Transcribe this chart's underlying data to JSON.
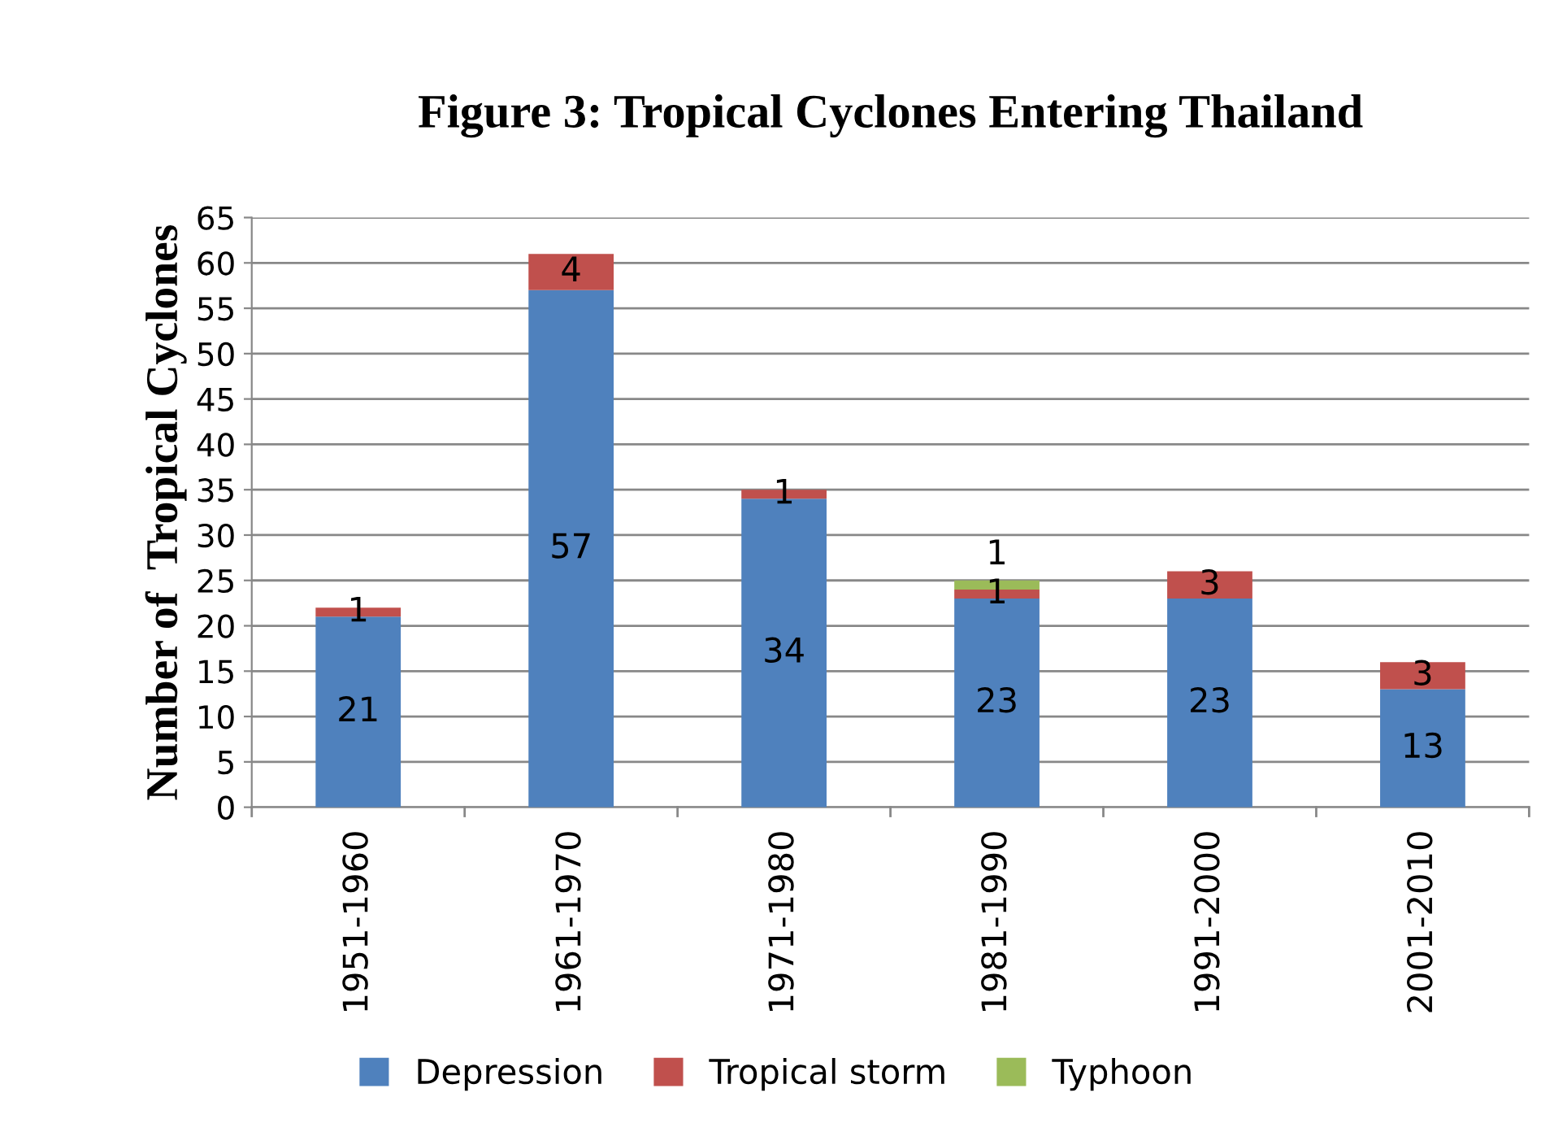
{
  "chart_data": {
    "type": "bar",
    "title": "Figure 3: Tropical Cyclones Entering Thailand",
    "ylabel": "Number of  Tropical Cyclones",
    "categories": [
      "1951-1960",
      "1961-1970",
      "1971-1980",
      "1981-1990",
      "1991-2000",
      "2001-2010"
    ],
    "series": [
      {
        "name": "Depression",
        "color": "#4f81bd",
        "values": [
          21,
          57,
          34,
          23,
          23,
          13
        ]
      },
      {
        "name": "Tropical storm",
        "color": "#c0504d",
        "values": [
          1,
          4,
          1,
          1,
          3,
          3
        ]
      },
      {
        "name": "Typhoon",
        "color": "#9bbb59",
        "values": [
          null,
          null,
          null,
          1,
          null,
          null
        ]
      }
    ],
    "stacked": true,
    "data_labels": true,
    "ylim": [
      0,
      65
    ],
    "yticks": [
      0,
      5,
      10,
      15,
      20,
      25,
      30,
      35,
      40,
      45,
      50,
      55,
      60,
      65
    ],
    "grid": "y",
    "legend": "bottom"
  }
}
